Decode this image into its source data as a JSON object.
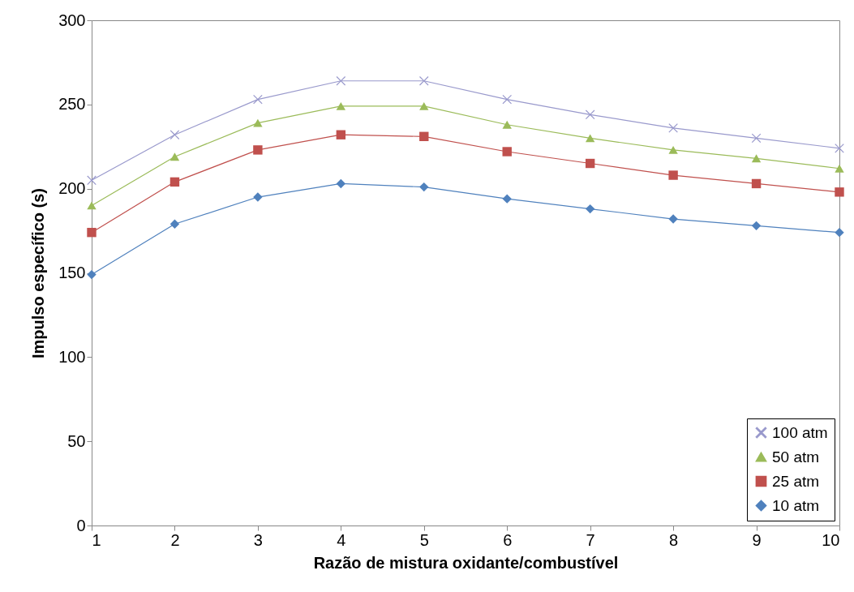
{
  "chart_data": {
    "type": "line",
    "xlabel": "Razão de mistura oxidante/combustível",
    "ylabel": "Impulso específico (s)",
    "x": [
      1,
      2,
      3,
      4,
      5,
      6,
      7,
      8,
      9,
      10
    ],
    "series": [
      {
        "name": "100 atm",
        "color": "#9999cc",
        "marker": "cross",
        "values": [
          205,
          232,
          253,
          264,
          264,
          253,
          244,
          236,
          230,
          224
        ]
      },
      {
        "name": "50 atm",
        "color": "#9bbb59",
        "marker": "triangle",
        "values": [
          190,
          219,
          239,
          249,
          249,
          238,
          230,
          223,
          218,
          212
        ]
      },
      {
        "name": "25 atm",
        "color": "#c0504d",
        "marker": "square",
        "values": [
          174,
          204,
          223,
          232,
          231,
          222,
          215,
          208,
          203,
          198
        ]
      },
      {
        "name": "10 atm",
        "color": "#4f81bd",
        "marker": "diamond",
        "values": [
          149,
          179,
          195,
          203,
          201,
          194,
          188,
          182,
          178,
          174
        ]
      }
    ],
    "xlim": [
      1,
      10
    ],
    "xticks": [
      1,
      2,
      3,
      4,
      5,
      6,
      7,
      8,
      9,
      10
    ],
    "ylim": [
      0,
      300
    ],
    "yticks": [
      0,
      50,
      100,
      150,
      200,
      250,
      300
    ],
    "grid": false,
    "legend": "bottom right",
    "line_style": "solid"
  }
}
